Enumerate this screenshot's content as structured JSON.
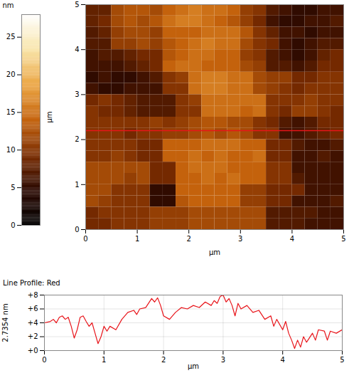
{
  "chart_data": [
    {
      "type": "heatmap",
      "xlabel": "µm",
      "ylabel": "µm",
      "xlim": [
        0,
        5
      ],
      "ylim": [
        0,
        5
      ],
      "xticks": [
        0,
        1,
        2,
        3,
        4,
        5
      ],
      "yticks": [
        0,
        1,
        2,
        3,
        4,
        5
      ],
      "profile_y": 2.2,
      "color": "#e8141a",
      "cells": {
        "x": [
          0.125,
          0.375,
          0.625,
          0.875,
          1.125,
          1.375,
          1.625,
          1.875,
          2.125,
          2.375,
          2.625,
          2.875,
          3.125,
          3.375,
          3.625,
          3.875,
          4.125,
          4.375,
          4.625,
          4.875
        ],
        "y": [
          4.875,
          4.625,
          4.375,
          4.125,
          3.875,
          3.625,
          3.375,
          3.125,
          2.875,
          2.625,
          2.375,
          2.125,
          1.875,
          1.625,
          1.375,
          1.125,
          0.875,
          0.625,
          0.375,
          0.125
        ],
        "values": [
          [
            8,
            8,
            12,
            13,
            13,
            12,
            14,
            15,
            16,
            15,
            15,
            14,
            11,
            10,
            7,
            6,
            5,
            5,
            6,
            6
          ],
          [
            8,
            9,
            12,
            13,
            12,
            13,
            15,
            16,
            16,
            15,
            14,
            13,
            11,
            9,
            6,
            5,
            5,
            6,
            6,
            7
          ],
          [
            7,
            8,
            11,
            12,
            12,
            11,
            14,
            14,
            14,
            15,
            15,
            15,
            13,
            10,
            8,
            6,
            6,
            5,
            6,
            6
          ],
          [
            7,
            7,
            11,
            11,
            12,
            11,
            13,
            14,
            15,
            16,
            15,
            15,
            12,
            10,
            9,
            6,
            5,
            6,
            7,
            7
          ],
          [
            6,
            7,
            7,
            8,
            9,
            9,
            13,
            14,
            15,
            15,
            14,
            14,
            11,
            10,
            7,
            6,
            5,
            6,
            8,
            9
          ],
          [
            6,
            6,
            6,
            7,
            8,
            9,
            14,
            15,
            15,
            14,
            14,
            14,
            12,
            11,
            7,
            7,
            6,
            7,
            9,
            9
          ],
          [
            5,
            6,
            5,
            5,
            6,
            7,
            10,
            11,
            15,
            16,
            16,
            15,
            15,
            12,
            11,
            11,
            9,
            9,
            10,
            10
          ],
          [
            6,
            5,
            5,
            6,
            6,
            6,
            10,
            10,
            15,
            16,
            16,
            15,
            15,
            12,
            11,
            10,
            9,
            10,
            10,
            10
          ],
          [
            9,
            10,
            9,
            8,
            7,
            7,
            7,
            10,
            11,
            15,
            15,
            15,
            15,
            15,
            10,
            10,
            10,
            11,
            10,
            10
          ],
          [
            10,
            9,
            9,
            8,
            7,
            7,
            7,
            10,
            10,
            15,
            15,
            15,
            14,
            15,
            10,
            9,
            11,
            11,
            10,
            9
          ],
          [
            10,
            10,
            10,
            10,
            10,
            11,
            10,
            11,
            12,
            13,
            13,
            12,
            12,
            10,
            9,
            7,
            6,
            7,
            9,
            9
          ],
          [
            10,
            10,
            10,
            9,
            10,
            10,
            11,
            11,
            12,
            13,
            12,
            13,
            12,
            10,
            10,
            6,
            6,
            7,
            8,
            9
          ],
          [
            10,
            10,
            10,
            10,
            9,
            9,
            14,
            14,
            14,
            15,
            15,
            15,
            14,
            14,
            9,
            9,
            7,
            6,
            6,
            7
          ],
          [
            10,
            10,
            11,
            10,
            9,
            9,
            14,
            14,
            15,
            14,
            15,
            14,
            14,
            15,
            9,
            9,
            6,
            6,
            7,
            6
          ],
          [
            12,
            12,
            12,
            12,
            12,
            9,
            9,
            14,
            15,
            15,
            15,
            14,
            14,
            14,
            10,
            10,
            6,
            6,
            6,
            6
          ],
          [
            12,
            12,
            12,
            11,
            12,
            9,
            9,
            14,
            14,
            15,
            14,
            15,
            14,
            14,
            10,
            10,
            7,
            6,
            6,
            6
          ],
          [
            12,
            12,
            10,
            10,
            10,
            5,
            5,
            14,
            14,
            14,
            14,
            14,
            11,
            11,
            9,
            9,
            9,
            6,
            6,
            6
          ],
          [
            12,
            11,
            10,
            10,
            10,
            5,
            5,
            13,
            14,
            14,
            14,
            14,
            11,
            11,
            9,
            9,
            6,
            6,
            6,
            7
          ],
          [
            9,
            10,
            10,
            10,
            10,
            11,
            11,
            11,
            12,
            12,
            12,
            12,
            12,
            12,
            7,
            7,
            7,
            7,
            6,
            6
          ],
          [
            9,
            9,
            10,
            10,
            10,
            11,
            11,
            11,
            12,
            12,
            12,
            12,
            12,
            12,
            7,
            7,
            7,
            6,
            6,
            6
          ]
        ]
      },
      "colorbar": {
        "label": "nm",
        "range": [
          0,
          28
        ],
        "ticks": [
          0,
          5,
          10,
          15,
          20,
          25
        ]
      }
    },
    {
      "type": "line",
      "title": "Line Profile: Red",
      "xlabel": "µm",
      "ylabel": "2.7354 nm",
      "xlim": [
        0,
        5
      ],
      "ylim": [
        0,
        8
      ],
      "xticks": [
        0,
        1,
        2,
        3,
        4,
        5
      ],
      "yticks": [
        {
          "value": 0,
          "label": "+0"
        },
        {
          "value": 2,
          "label": "+2"
        },
        {
          "value": 4,
          "label": "+4"
        },
        {
          "value": 6,
          "label": "+6"
        },
        {
          "value": 8,
          "label": "+8"
        }
      ],
      "grid": true,
      "color": "#e8141a",
      "x": [
        0,
        0.1,
        0.15,
        0.2,
        0.25,
        0.3,
        0.35,
        0.4,
        0.45,
        0.5,
        0.55,
        0.6,
        0.65,
        0.7,
        0.75,
        0.8,
        0.85,
        0.9,
        0.95,
        1.0,
        1.05,
        1.1,
        1.2,
        1.3,
        1.4,
        1.5,
        1.55,
        1.6,
        1.7,
        1.8,
        1.85,
        1.9,
        1.95,
        2.0,
        2.1,
        2.2,
        2.3,
        2.4,
        2.5,
        2.6,
        2.7,
        2.8,
        2.85,
        2.9,
        2.95,
        3.0,
        3.05,
        3.1,
        3.15,
        3.2,
        3.25,
        3.3,
        3.4,
        3.5,
        3.6,
        3.7,
        3.8,
        3.85,
        3.9,
        4.0,
        4.05,
        4.1,
        4.15,
        4.2,
        4.25,
        4.3,
        4.35,
        4.4,
        4.5,
        4.55,
        4.6,
        4.7,
        4.75,
        4.8,
        4.9,
        5.0
      ],
      "values": [
        4,
        4.2,
        4.5,
        4.0,
        4.8,
        5.0,
        4.5,
        4.8,
        3.5,
        1.8,
        3.0,
        4.8,
        5.0,
        4.2,
        3.5,
        4.0,
        2.5,
        1.0,
        2.0,
        3.5,
        2.8,
        3.5,
        3.0,
        4.5,
        5.5,
        5.8,
        5.2,
        6.0,
        6.2,
        7.5,
        7.0,
        7.6,
        6.5,
        5.0,
        4.5,
        5.5,
        6.2,
        6.0,
        6.5,
        6.2,
        7.0,
        6.5,
        7.2,
        6.8,
        7.8,
        8.0,
        7.0,
        7.5,
        6.5,
        5.0,
        6.8,
        6.0,
        6.5,
        5.5,
        5.8,
        4.5,
        5.0,
        3.5,
        4.5,
        3.0,
        4.2,
        2.5,
        1.5,
        0.3,
        1.5,
        0.5,
        2.0,
        1.2,
        2.5,
        1.5,
        3.0,
        2.8,
        1.5,
        2.8,
        2.5,
        3.0
      ]
    }
  ]
}
